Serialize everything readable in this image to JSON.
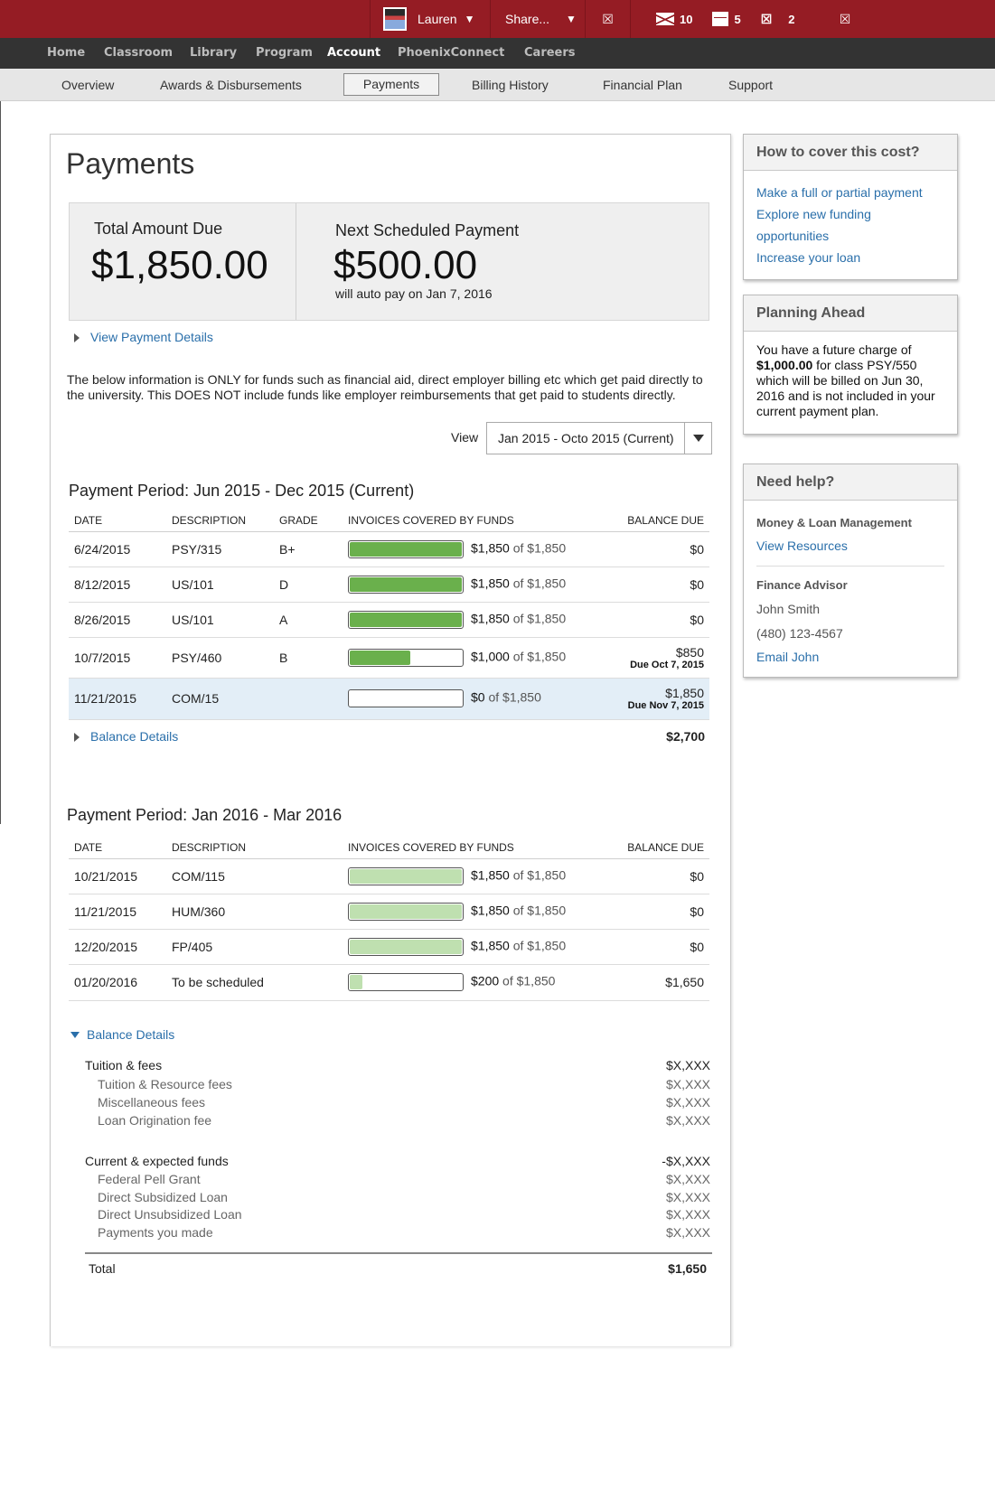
{
  "topbar": {
    "user_name": "Lauren",
    "share_label": "Share...",
    "mail_count": "10",
    "calendar_count": "5",
    "third_count": "2",
    "placeholder_glyph": "☒"
  },
  "main_nav": [
    "Home",
    "Classroom",
    "Library",
    "Program",
    "Account",
    "PhoenixConnect",
    "Careers"
  ],
  "sub_nav": [
    "Overview",
    "Awards & Disbursements",
    "Payments",
    "Billing History",
    "Financial Plan",
    "Support"
  ],
  "page_title": "Payments",
  "summary": {
    "total_label": "Total Amount Due",
    "total_amount": "$1,850.00",
    "next_label": "Next Scheduled Payment",
    "next_amount": "$500.00",
    "next_note": "will auto pay on Jan 7, 2016"
  },
  "view_payment_details": "View Payment Details",
  "info_text": "The below information is ONLY for funds such as financial aid, direct employer billing etc which get paid directly to the university. This DOES NOT include funds like employer reimbursements that get paid to students directly.",
  "view": {
    "label": "View",
    "selected": "Jan 2015 - Octo 2015 (Current)"
  },
  "columns": {
    "date": "DATE",
    "description": "DESCRIPTION",
    "grade": "GRADE",
    "invoices": "INVOICES COVERED BY FUNDS",
    "balance": "BALANCE DUE"
  },
  "period1": {
    "title": "Payment Period: Jun 2015 - Dec 2015 (Current)",
    "rows": [
      {
        "date": "6/24/2015",
        "desc": "PSY/315",
        "grade": "B+",
        "covered": "$1,850",
        "of": "of $1,850",
        "balance": "$0",
        "due": "",
        "progress": 1.0
      },
      {
        "date": "8/12/2015",
        "desc": "US/101",
        "grade": "D",
        "covered": "$1,850",
        "of": "of $1,850",
        "balance": "$0",
        "due": "",
        "progress": 1.0
      },
      {
        "date": "8/26/2015",
        "desc": "US/101",
        "grade": "A",
        "covered": "$1,850",
        "of": "of $1,850",
        "balance": "$0",
        "due": "",
        "progress": 1.0
      },
      {
        "date": "10/7/2015",
        "desc": "PSY/460",
        "grade": "B",
        "covered": "$1,000",
        "of": "of $1,850",
        "balance": "$850",
        "due": "Due Oct 7, 2015",
        "progress": 0.54
      },
      {
        "date": "11/21/2015",
        "desc": "COM/15",
        "grade": "",
        "covered": "$0",
        "of": "of $1,850",
        "balance": "$1,850",
        "due": "Due Nov 7, 2015",
        "progress": 0
      }
    ],
    "balance_details_label": "Balance Details",
    "balance_total": "$2,700",
    "bar_color": "#6ab04c"
  },
  "period2": {
    "title": "Payment Period: Jan 2016 - Mar 2016",
    "rows": [
      {
        "date": "10/21/2015",
        "desc": "COM/115",
        "covered": "$1,850",
        "of": "of $1,850",
        "balance": "$0",
        "progress": 1.0
      },
      {
        "date": "11/21/2015",
        "desc": "HUM/360",
        "covered": "$1,850",
        "of": "of $1,850",
        "balance": "$0",
        "progress": 1.0
      },
      {
        "date": "12/20/2015",
        "desc": "FP/405",
        "covered": "$1,850",
        "of": "of $1,850",
        "balance": "$0",
        "progress": 1.0
      },
      {
        "date": "01/20/2016",
        "desc": "To be scheduled",
        "covered": "$200",
        "of": "of $1,850",
        "balance": "$1,650",
        "progress": 0.11
      }
    ],
    "balance_details_label": "Balance Details",
    "bar_color": "#bfe0b0"
  },
  "balance_details": {
    "tuition_label": "Tuition & fees",
    "tuition_value": "$X,XXX",
    "tuition_items": [
      {
        "label": "Tuition & Resource fees",
        "value": "$X,XXX"
      },
      {
        "label": "Miscellaneous fees",
        "value": "$X,XXX"
      },
      {
        "label": "Loan Origination fee",
        "value": "$X,XXX"
      }
    ],
    "funds_label": "Current & expected funds",
    "funds_value": "-$X,XXX",
    "funds_items": [
      {
        "label": "Federal Pell Grant",
        "value": "$X,XXX"
      },
      {
        "label": "Direct Subsidized Loan",
        "value": "$X,XXX"
      },
      {
        "label": "Direct Unsubsidized Loan",
        "value": "$X,XXX"
      },
      {
        "label": "Payments you made",
        "value": "$X,XXX"
      }
    ],
    "total_label": "Total",
    "total_value": "$1,650"
  },
  "sidebar": {
    "cover": {
      "title": "How to cover this cost?",
      "links": [
        "Make a full or partial payment",
        "Explore new funding opportunities",
        "Increase your loan"
      ]
    },
    "planning": {
      "title": "Planning Ahead",
      "text_pre": "You have a future charge of ",
      "text_amount": "$1,000.00",
      "text_post": " for class PSY/550 which will be billed on Jun 30, 2016 and is not included in your current payment plan."
    },
    "help": {
      "title": "Need help?",
      "section1_label": "Money & Loan Management",
      "section1_link": "View Resources",
      "section2_label": "Finance Advisor",
      "advisor_name": "John Smith",
      "advisor_phone": "(480) 123-4567",
      "advisor_email_link": "Email John"
    }
  }
}
